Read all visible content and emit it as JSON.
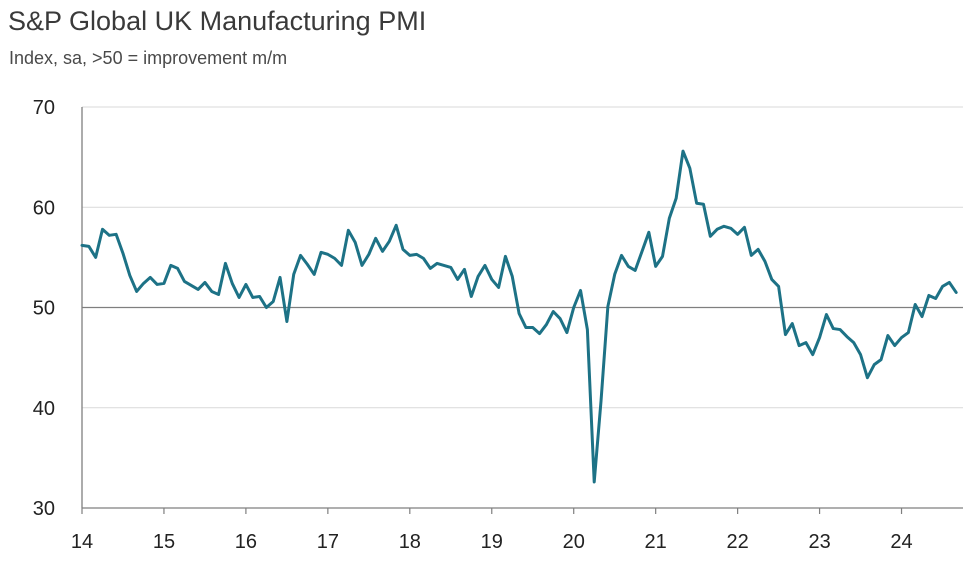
{
  "chart_data": {
    "type": "line",
    "title": "S&P Global UK Manufacturing PMI",
    "subtitle": "Index, sa, >50 = improvement m/m",
    "xlabel": "",
    "ylabel": "",
    "ylim": [
      30,
      70
    ],
    "yticks": [
      30,
      40,
      50,
      60,
      70
    ],
    "xlim": [
      2014.0,
      2024.75
    ],
    "xticks": [
      {
        "value": 2014,
        "label": "14"
      },
      {
        "value": 2015,
        "label": "15"
      },
      {
        "value": 2016,
        "label": "16"
      },
      {
        "value": 2017,
        "label": "17"
      },
      {
        "value": 2018,
        "label": "18"
      },
      {
        "value": 2019,
        "label": "19"
      },
      {
        "value": 2020,
        "label": "20"
      },
      {
        "value": 2021,
        "label": "21"
      },
      {
        "value": 2022,
        "label": "22"
      },
      {
        "value": 2023,
        "label": "23"
      },
      {
        "value": 2024,
        "label": "24"
      }
    ],
    "reference_line": 50,
    "grid": "horizontal",
    "colors": {
      "line": "#1d7286",
      "grid": "#d9d9d9",
      "reference": "#7f7f7f",
      "axis": "#7f7f7f"
    },
    "series": [
      {
        "start": "2014-01",
        "frequency": "monthly",
        "values": [
          56.2,
          56.1,
          55.0,
          57.8,
          57.2,
          57.3,
          55.4,
          53.2,
          51.6,
          52.4,
          53.0,
          52.3,
          52.4,
          54.2,
          53.9,
          52.6,
          52.2,
          51.8,
          52.5,
          51.6,
          51.3,
          54.4,
          52.4,
          51.0,
          52.3,
          51.0,
          51.1,
          50.0,
          50.6,
          53.0,
          48.6,
          53.3,
          55.2,
          54.3,
          53.3,
          55.5,
          55.3,
          54.9,
          54.2,
          57.7,
          56.5,
          54.2,
          55.3,
          56.9,
          55.6,
          56.6,
          58.2,
          55.8,
          55.2,
          55.3,
          54.9,
          53.9,
          54.4,
          54.2,
          54.0,
          52.8,
          53.8,
          51.1,
          53.1,
          54.2,
          52.8,
          52.0,
          55.1,
          53.1,
          49.4,
          48.0,
          48.0,
          47.4,
          48.3,
          49.6,
          48.9,
          47.5,
          50.0,
          51.7,
          47.8,
          32.6,
          40.7,
          50.1,
          53.3,
          55.2,
          54.1,
          53.7,
          55.6,
          57.5,
          54.1,
          55.1,
          58.9,
          60.9,
          65.6,
          63.9,
          60.4,
          60.3,
          57.1,
          57.8,
          58.1,
          57.9,
          57.3,
          58.0,
          55.2,
          55.8,
          54.6,
          52.8,
          52.1,
          47.3,
          48.4,
          46.2,
          46.5,
          45.3,
          47.0,
          49.3,
          47.9,
          47.8,
          47.1,
          46.5,
          45.3,
          43.0,
          44.3,
          44.8,
          47.2,
          46.2,
          47.0,
          47.5,
          50.3,
          49.1,
          51.2,
          50.9,
          52.1,
          52.5,
          51.5
        ]
      }
    ]
  }
}
